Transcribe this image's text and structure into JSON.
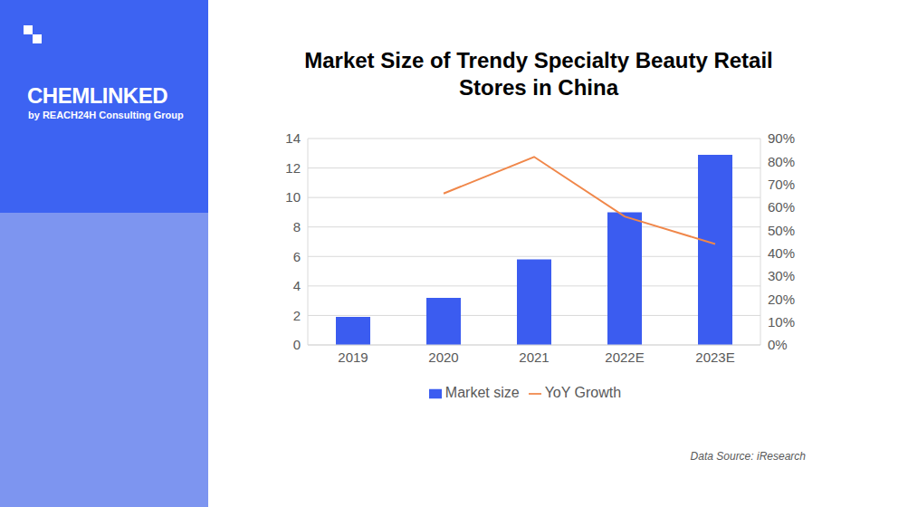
{
  "chart_data": {
    "type": "bar",
    "title": "Market Size of Trendy Specialty Beauty Retail Stores in China",
    "categories": [
      "2019",
      "2020",
      "2021",
      "2022E",
      "2023E"
    ],
    "series": [
      {
        "name": "Market size",
        "type": "bar",
        "color": "#3b5cf0",
        "values": [
          1.9,
          3.2,
          5.8,
          9.0,
          12.9
        ]
      },
      {
        "name": "YoY Growth",
        "type": "line",
        "color": "#f0874a",
        "axis": "y2",
        "values": [
          null,
          66,
          82,
          56,
          44
        ]
      }
    ],
    "ylim": [
      0,
      14
    ],
    "yticks": [
      0,
      2,
      4,
      6,
      8,
      10,
      12,
      14
    ],
    "y2lim": [
      0,
      90
    ],
    "y2ticks": [
      {
        "value": 0,
        "label": "0%"
      },
      {
        "value": 10,
        "label": "10%"
      },
      {
        "value": 20,
        "label": "20%"
      },
      {
        "value": 30,
        "label": "30%"
      },
      {
        "value": 40,
        "label": "40%"
      },
      {
        "value": 50,
        "label": "50%"
      },
      {
        "value": 60,
        "label": "60%"
      },
      {
        "value": 70,
        "label": "70%"
      },
      {
        "value": 80,
        "label": "80%"
      },
      {
        "value": 90,
        "label": "90%"
      }
    ],
    "grid": true,
    "legend": "bottom",
    "source": "Data Source: iResearch",
    "brand": "CHEMLINKED",
    "brand_subtitle": "by REACH24H Consulting Group"
  }
}
